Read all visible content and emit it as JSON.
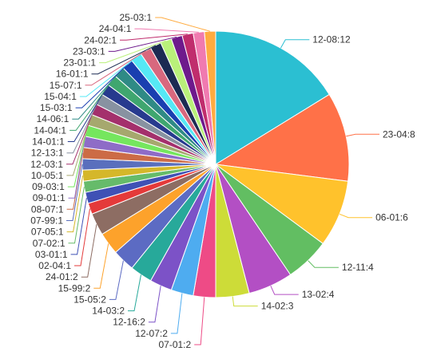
{
  "chart_data": {
    "type": "pie",
    "title": "",
    "legend": "none",
    "start_angle_deg": 90,
    "direction": "clockwise",
    "label_format": "{name}:{value}",
    "slices": [
      {
        "name": "12-08",
        "value": 12,
        "color": "#2bbfd2"
      },
      {
        "name": "23-04",
        "value": 8,
        "color": "#ff7148"
      },
      {
        "name": "06-01",
        "value": 6,
        "color": "#ffc22c"
      },
      {
        "name": "12-11",
        "value": 4,
        "color": "#62be62"
      },
      {
        "name": "13-02",
        "value": 4,
        "color": "#b34fc4"
      },
      {
        "name": "14-02",
        "value": 3,
        "color": "#cddc38"
      },
      {
        "name": "07-01",
        "value": 2,
        "color": "#ee4b86"
      },
      {
        "name": "12-07",
        "value": 2,
        "color": "#4eacf0"
      },
      {
        "name": "12-16",
        "value": 2,
        "color": "#7c52c7"
      },
      {
        "name": "14-03",
        "value": 2,
        "color": "#27a99a"
      },
      {
        "name": "15-05",
        "value": 2,
        "color": "#5c6bc3"
      },
      {
        "name": "15-99",
        "value": 2,
        "color": "#fda22b"
      },
      {
        "name": "24-01",
        "value": 2,
        "color": "#8d6d63"
      },
      {
        "name": "02-04",
        "value": 1,
        "color": "#e43a3a"
      },
      {
        "name": "03-01",
        "value": 1,
        "color": "#3f51b5"
      },
      {
        "name": "07-02",
        "value": 1,
        "color": "#66bb6a"
      },
      {
        "name": "07-05",
        "value": 1,
        "color": "#d5b72a"
      },
      {
        "name": "07-99",
        "value": 1,
        "color": "#5a6fbd"
      },
      {
        "name": "08-07",
        "value": 1,
        "color": "#cc6b46"
      },
      {
        "name": "09-01",
        "value": 1,
        "color": "#8e6cc7"
      },
      {
        "name": "09-03",
        "value": 1,
        "color": "#75e65e"
      },
      {
        "name": "10-05",
        "value": 1,
        "color": "#a6a86e"
      },
      {
        "name": "12-03",
        "value": 1,
        "color": "#a4306c"
      },
      {
        "name": "12-13",
        "value": 1,
        "color": "#8892a1"
      },
      {
        "name": "14-01",
        "value": 1,
        "color": "#273a8e"
      },
      {
        "name": "14-04",
        "value": 1,
        "color": "#3fa66f"
      },
      {
        "name": "14-06",
        "value": 1,
        "color": "#2f8a85"
      },
      {
        "name": "15-03",
        "value": 1,
        "color": "#1a3fb0"
      },
      {
        "name": "15-04",
        "value": 1,
        "color": "#56e8f5"
      },
      {
        "name": "15-07",
        "value": 1,
        "color": "#d8687e"
      },
      {
        "name": "16-01",
        "value": 1,
        "color": "#1c2a52"
      },
      {
        "name": "23-01",
        "value": 1,
        "color": "#b9f07a"
      },
      {
        "name": "23-03",
        "value": 1,
        "color": "#6e1a8c"
      },
      {
        "name": "24-02",
        "value": 1,
        "color": "#c02d6d"
      },
      {
        "name": "24-04",
        "value": 1,
        "color": "#f07ab0"
      },
      {
        "name": "25-03",
        "value": 1,
        "color": "#ffab40"
      }
    ]
  }
}
